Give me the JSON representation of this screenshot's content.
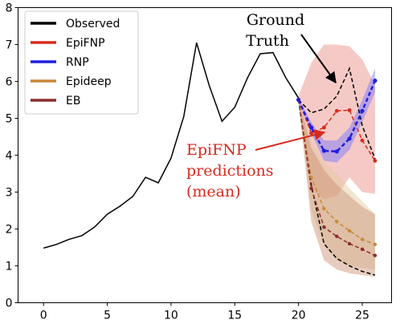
{
  "chart_data": {
    "type": "line",
    "title": "",
    "xlabel": "",
    "ylabel": "",
    "xlim": [
      -2,
      27.3
    ],
    "ylim": [
      0,
      8
    ],
    "xticks": [
      0,
      5,
      10,
      15,
      20,
      25
    ],
    "yticks": [
      0,
      1,
      2,
      3,
      4,
      5,
      6,
      7,
      8
    ],
    "grid": false,
    "legend_position": "top-left",
    "legend": [
      {
        "name": "Observed",
        "color": "#000000"
      },
      {
        "name": "EpiFNP",
        "color": "#d62b1f"
      },
      {
        "name": "RNP",
        "color": "#1f1fe0"
      },
      {
        "name": "Epideep",
        "color": "#c8893a"
      },
      {
        "name": "EB",
        "color": "#8b2c2c"
      }
    ],
    "observed": {
      "x": [
        0,
        1,
        2,
        3,
        4,
        5,
        6,
        7,
        8,
        9,
        10,
        11,
        12,
        13,
        14,
        15,
        16,
        17,
        18,
        19,
        20
      ],
      "y": [
        1.48,
        1.58,
        1.72,
        1.82,
        2.05,
        2.4,
        2.62,
        2.88,
        3.4,
        3.25,
        3.92,
        5.05,
        7.05,
        5.88,
        4.92,
        5.3,
        6.1,
        6.75,
        6.78,
        6.1,
        5.55
      ]
    },
    "ground_truth": {
      "x": [
        20,
        21,
        22,
        23,
        24,
        25,
        26
      ],
      "y": [
        5.5,
        5.15,
        5.25,
        5.6,
        6.35,
        4.8,
        3.9
      ]
    },
    "ground_truth_low": {
      "x": [
        20,
        21,
        22,
        23,
        24,
        25,
        26
      ],
      "y": [
        5.5,
        3.2,
        1.6,
        1.2,
        1.0,
        0.85,
        0.75
      ]
    },
    "epifnp": {
      "x": [
        20,
        21,
        22,
        23,
        24,
        25,
        26
      ],
      "y": [
        5.5,
        4.6,
        4.75,
        5.2,
        5.22,
        4.4,
        3.85
      ],
      "upper": [
        5.6,
        6.5,
        7.0,
        7.0,
        6.95,
        6.6,
        5.9
      ],
      "lower": [
        5.4,
        3.1,
        2.8,
        2.9,
        3.4,
        3.0,
        2.95
      ]
    },
    "rnp": {
      "x": [
        20,
        21,
        22,
        23,
        24,
        25,
        26
      ],
      "y": [
        5.5,
        4.75,
        4.12,
        4.1,
        4.45,
        5.2,
        6.02
      ],
      "upper": [
        5.55,
        4.9,
        4.4,
        4.4,
        4.75,
        5.5,
        6.35
      ],
      "lower": [
        5.45,
        4.6,
        3.85,
        3.8,
        4.15,
        4.9,
        5.7
      ]
    },
    "epideep": {
      "x": [
        20,
        21,
        22,
        23,
        24,
        25,
        26
      ],
      "y": [
        5.5,
        3.4,
        2.55,
        2.2,
        1.95,
        1.72,
        1.58
      ],
      "upper": [
        5.55,
        4.4,
        3.8,
        3.5,
        3.1,
        2.75,
        2.4
      ],
      "lower": [
        5.45,
        2.5,
        1.55,
        1.15,
        1.0,
        0.95,
        0.9
      ]
    },
    "eb": {
      "x": [
        20,
        21,
        22,
        23,
        24,
        25,
        26
      ],
      "y": [
        5.5,
        3.1,
        2.05,
        1.8,
        1.6,
        1.45,
        1.28
      ],
      "upper": [
        5.55,
        4.2,
        3.6,
        3.2,
        2.9,
        2.6,
        2.4
      ],
      "lower": [
        5.45,
        2.2,
        1.15,
        0.9,
        0.8,
        0.75,
        0.7
      ]
    },
    "annotations": {
      "ground_truth": [
        "Ground",
        "Truth"
      ],
      "epifnp": [
        "EpiFNP",
        "predictions",
        "(mean)"
      ]
    }
  }
}
